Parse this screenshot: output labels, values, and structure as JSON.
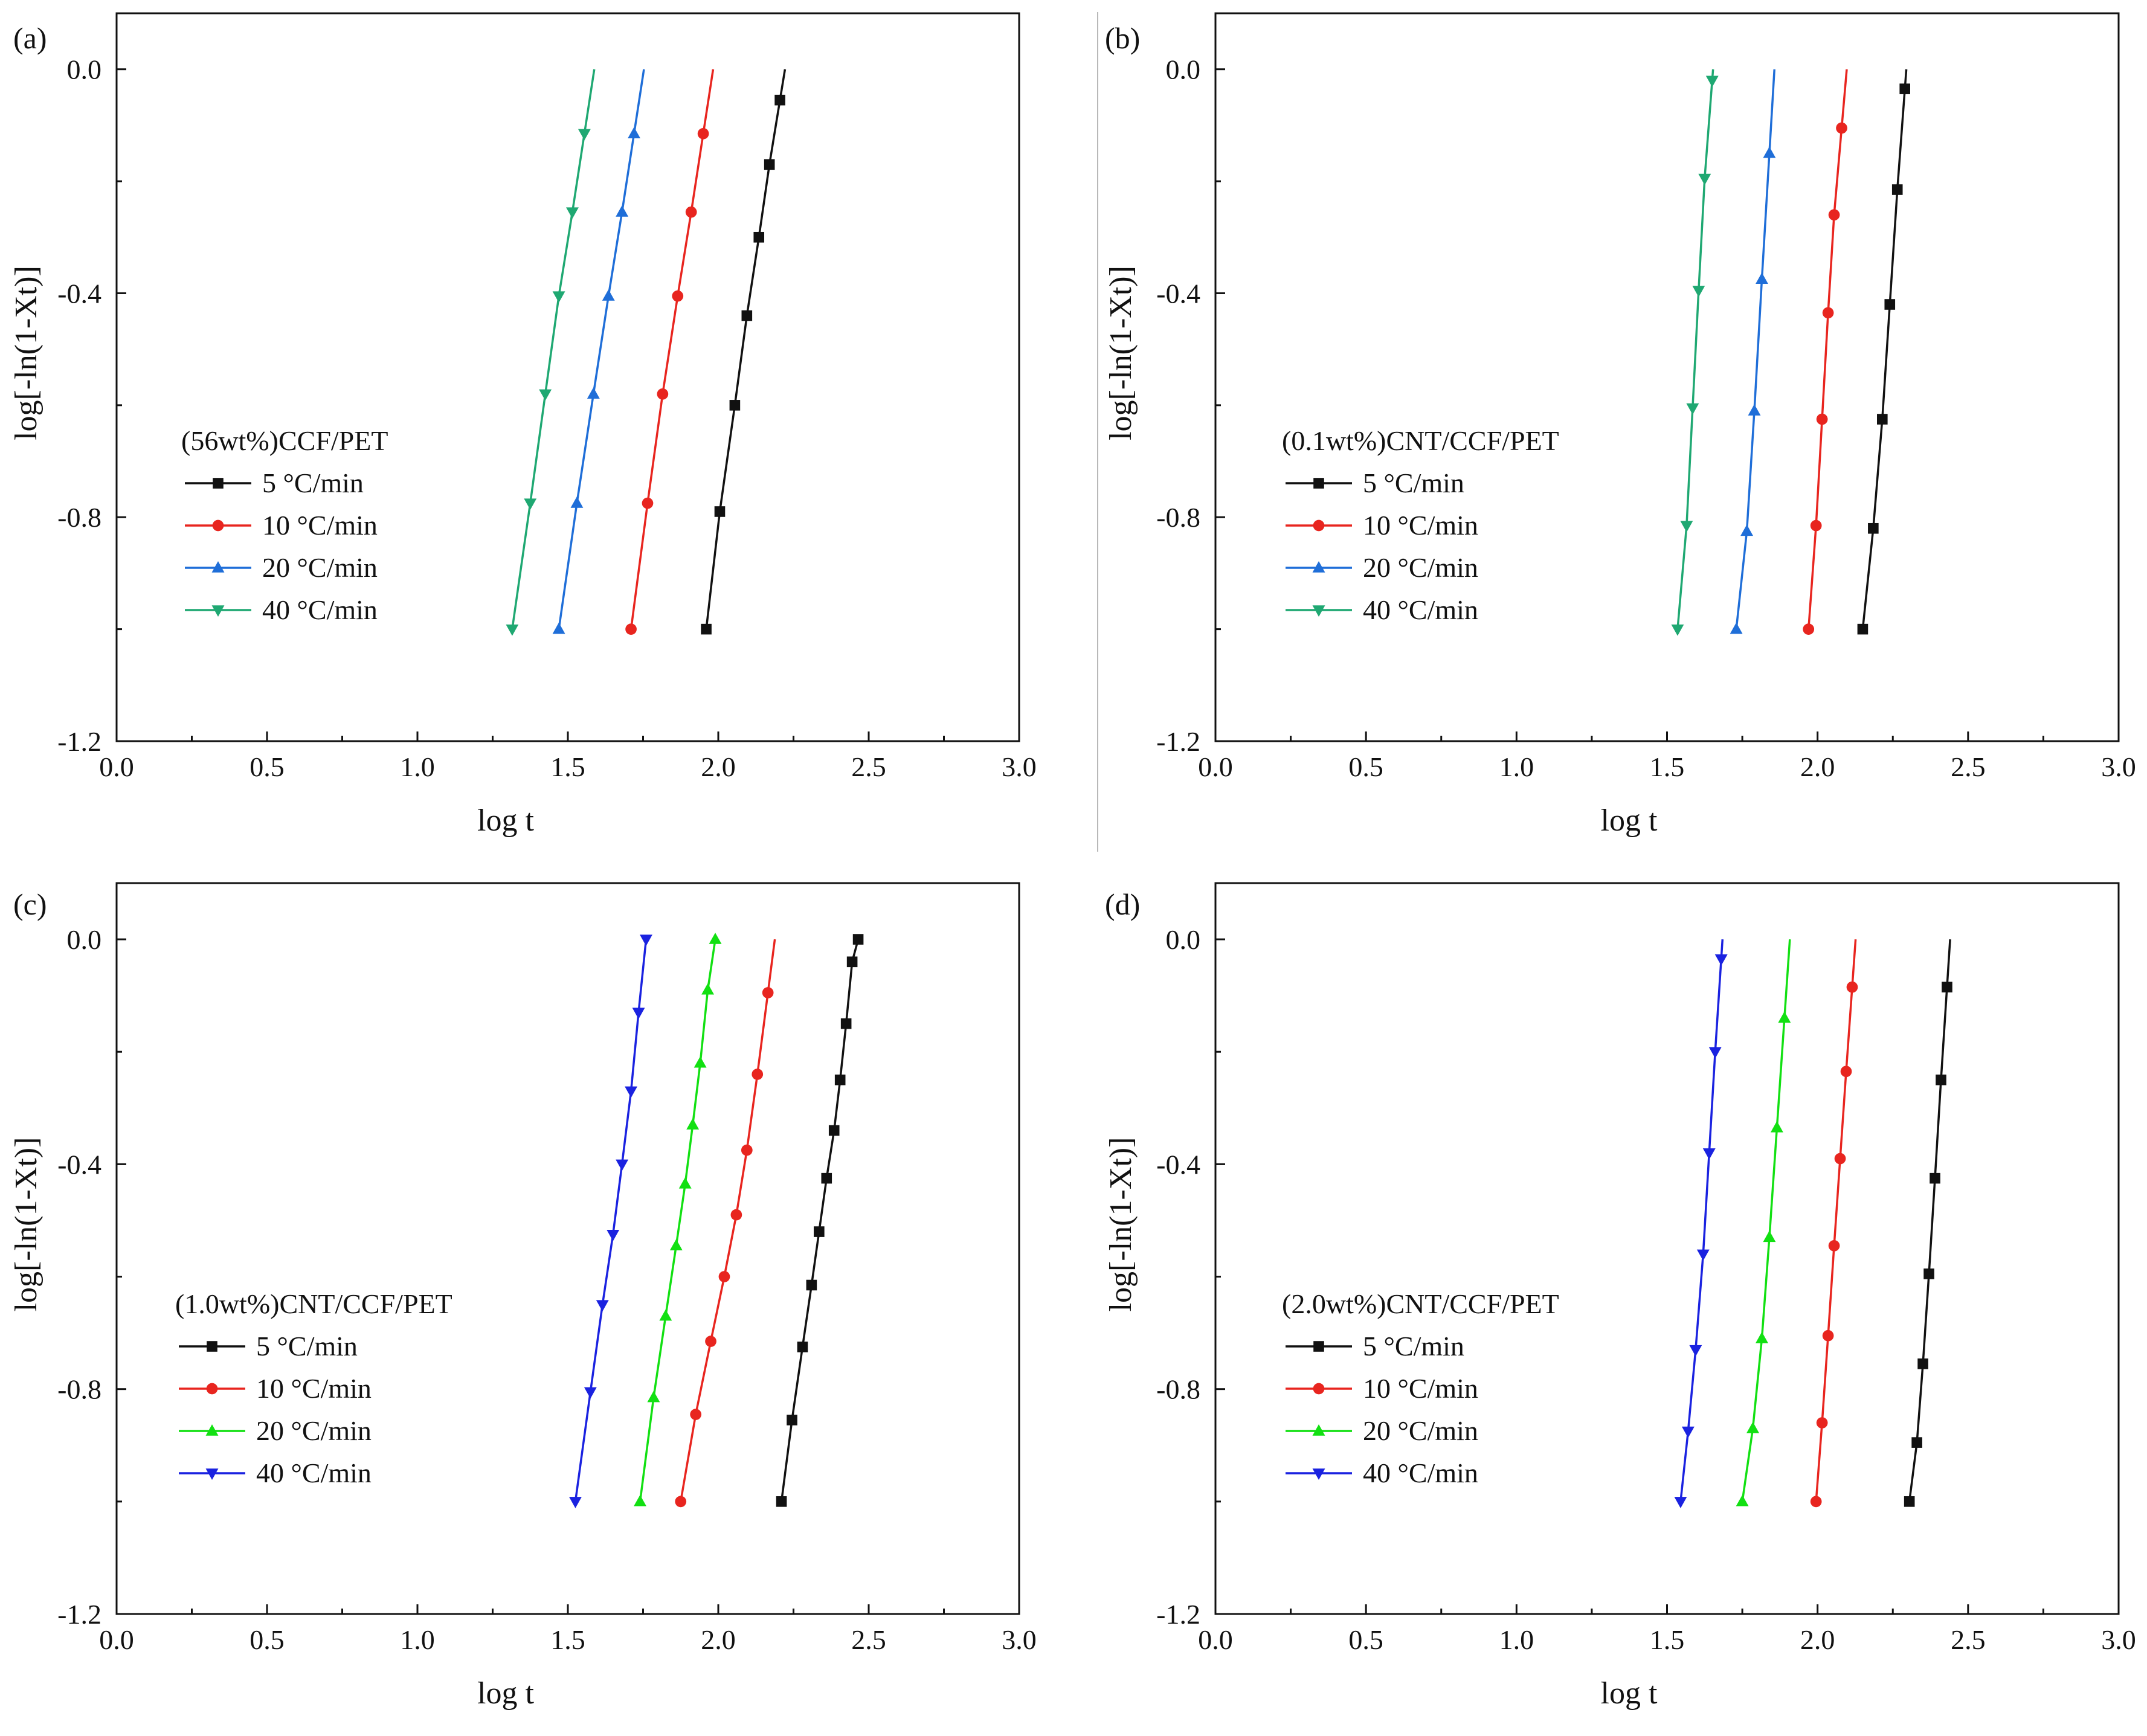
{
  "figure": {
    "panels": [
      {
        "label": "(a)",
        "legend_title": "(56wt%)CCF/PET",
        "xlabel": "log t",
        "ylabel": "log[-ln(1-Xt)]",
        "series": [
          {
            "name": "5 °C/min",
            "color": "#111111",
            "marker": "square",
            "x": [
              1.96,
              2.005,
              2.055,
              2.095,
              2.135,
              2.17,
              2.205
            ],
            "y": [
              -1.0,
              -0.79,
              -0.6,
              -0.44,
              -0.3,
              -0.17,
              -0.055
            ]
          },
          {
            "name": "10 °C/min",
            "color": "#e8251f",
            "marker": "circle",
            "x": [
              1.71,
              1.765,
              1.815,
              1.865,
              1.91,
              1.95
            ],
            "y": [
              -1.0,
              -0.775,
              -0.58,
              -0.405,
              -0.255,
              -0.115
            ]
          },
          {
            "name": "20 °C/min",
            "color": "#1f6ed8",
            "marker": "triangle-up",
            "x": [
              1.47,
              1.53,
              1.585,
              1.635,
              1.68,
              1.72
            ],
            "y": [
              -1.0,
              -0.775,
              -0.58,
              -0.405,
              -0.255,
              -0.115
            ]
          },
          {
            "name": "40 °C/min",
            "color": "#1fa872",
            "marker": "triangle-down",
            "x": [
              1.315,
              1.375,
              1.425,
              1.47,
              1.515,
              1.555
            ],
            "y": [
              -1.0,
              -0.775,
              -0.58,
              -0.405,
              -0.255,
              -0.115
            ]
          }
        ]
      },
      {
        "label": "(b)",
        "legend_title": "(0.1wt%)CNT/CCF/PET",
        "xlabel": "log t",
        "ylabel": "log[-ln(1-Xt)]",
        "series": [
          {
            "name": "5 °C/min",
            "color": "#111111",
            "marker": "square",
            "x": [
              2.15,
              2.185,
              2.215,
              2.24,
              2.265,
              2.29
            ],
            "y": [
              -1.0,
              -0.82,
              -0.625,
              -0.42,
              -0.215,
              -0.035
            ]
          },
          {
            "name": "10 °C/min",
            "color": "#e8251f",
            "marker": "circle",
            "x": [
              1.97,
              1.995,
              2.015,
              2.035,
              2.055,
              2.08
            ],
            "y": [
              -1.0,
              -0.815,
              -0.625,
              -0.435,
              -0.26,
              -0.105
            ]
          },
          {
            "name": "20 °C/min",
            "color": "#1f6ed8",
            "marker": "triangle-up",
            "x": [
              1.73,
              1.765,
              1.79,
              1.815,
              1.84
            ],
            "y": [
              -1.0,
              -0.825,
              -0.61,
              -0.375,
              -0.15
            ]
          },
          {
            "name": "40 °C/min",
            "color": "#1fa872",
            "marker": "triangle-down",
            "x": [
              1.535,
              1.565,
              1.585,
              1.605,
              1.625,
              1.65
            ],
            "y": [
              -1.0,
              -0.815,
              -0.605,
              -0.395,
              -0.195,
              -0.02
            ]
          }
        ]
      },
      {
        "label": "(c)",
        "legend_title": "(1.0wt%)CNT/CCF/PET",
        "xlabel": "log t",
        "ylabel": "log[-ln(1-Xt)]",
        "series": [
          {
            "name": "5 °C/min",
            "color": "#111111",
            "marker": "square",
            "x": [
              2.21,
              2.245,
              2.28,
              2.31,
              2.335,
              2.36,
              2.385,
              2.405,
              2.425,
              2.445,
              2.465
            ],
            "y": [
              -1.0,
              -0.855,
              -0.725,
              -0.615,
              -0.52,
              -0.425,
              -0.34,
              -0.25,
              -0.15,
              -0.04,
              0.0
            ]
          },
          {
            "name": "10 °C/min",
            "color": "#e8251f",
            "marker": "circle",
            "x": [
              1.875,
              1.925,
              1.975,
              2.02,
              2.06,
              2.095,
              2.13,
              2.165
            ],
            "y": [
              -1.0,
              -0.845,
              -0.715,
              -0.6,
              -0.49,
              -0.375,
              -0.24,
              -0.095
            ]
          },
          {
            "name": "20 °C/min",
            "color": "#12e012",
            "marker": "triangle-up",
            "x": [
              1.74,
              1.785,
              1.825,
              1.86,
              1.89,
              1.915,
              1.94,
              1.965,
              1.99
            ],
            "y": [
              -1.0,
              -0.815,
              -0.67,
              -0.545,
              -0.435,
              -0.33,
              -0.22,
              -0.09,
              0.0
            ]
          },
          {
            "name": "40 °C/min",
            "color": "#1a22e0",
            "marker": "triangle-down",
            "x": [
              1.525,
              1.575,
              1.615,
              1.65,
              1.68,
              1.71,
              1.735,
              1.76
            ],
            "y": [
              -1.0,
              -0.805,
              -0.65,
              -0.525,
              -0.4,
              -0.27,
              -0.13,
              0.0
            ]
          }
        ]
      },
      {
        "label": "(d)",
        "legend_title": "(2.0wt%)CNT/CCF/PET",
        "xlabel": "log t",
        "ylabel": "log[-ln(1-Xt)]",
        "series": [
          {
            "name": "5 °C/min",
            "color": "#111111",
            "marker": "square",
            "x": [
              2.305,
              2.33,
              2.35,
              2.37,
              2.39,
              2.41,
              2.43
            ],
            "y": [
              -1.0,
              -0.895,
              -0.755,
              -0.595,
              -0.425,
              -0.25,
              -0.085
            ]
          },
          {
            "name": "10 °C/min",
            "color": "#e8251f",
            "marker": "circle",
            "x": [
              1.995,
              2.015,
              2.035,
              2.055,
              2.075,
              2.095,
              2.115
            ],
            "y": [
              -1.0,
              -0.86,
              -0.705,
              -0.545,
              -0.39,
              -0.235,
              -0.085
            ]
          },
          {
            "name": "20 °C/min",
            "color": "#12e012",
            "marker": "triangle-up",
            "x": [
              1.75,
              1.785,
              1.815,
              1.84,
              1.865,
              1.89
            ],
            "y": [
              -1.0,
              -0.87,
              -0.71,
              -0.53,
              -0.335,
              -0.14
            ]
          },
          {
            "name": "40 °C/min",
            "color": "#1a22e0",
            "marker": "triangle-down",
            "x": [
              1.545,
              1.57,
              1.595,
              1.62,
              1.64,
              1.66,
              1.68
            ],
            "y": [
              -1.0,
              -0.875,
              -0.73,
              -0.56,
              -0.38,
              -0.2,
              -0.035
            ]
          }
        ]
      }
    ]
  },
  "chart_data": [
    {
      "type": "line",
      "title": "(a) (56wt%)CCF/PET",
      "xlabel": "log t",
      "ylabel": "log[-ln(1-Xt)]",
      "xlim": [
        0.0,
        3.0
      ],
      "ylim": [
        -1.2,
        0.1
      ],
      "xticks": [
        "0.0",
        "0.5",
        "1.0",
        "1.5",
        "2.0",
        "2.5",
        "3.0"
      ],
      "yticks": [
        "-1.2",
        "-0.8",
        "-0.4",
        "0.0"
      ],
      "legend": "left-middle",
      "series": [
        {
          "name": "5 °C/min",
          "x": [
            1.96,
            2.005,
            2.055,
            2.095,
            2.135,
            2.17,
            2.205
          ],
          "y": [
            -1.0,
            -0.79,
            -0.6,
            -0.44,
            -0.3,
            -0.17,
            -0.055
          ]
        },
        {
          "name": "10 °C/min",
          "x": [
            1.71,
            1.765,
            1.815,
            1.865,
            1.91,
            1.95
          ],
          "y": [
            -1.0,
            -0.775,
            -0.58,
            -0.405,
            -0.255,
            -0.115
          ]
        },
        {
          "name": "20 °C/min",
          "x": [
            1.47,
            1.53,
            1.585,
            1.635,
            1.68,
            1.72
          ],
          "y": [
            -1.0,
            -0.775,
            -0.58,
            -0.405,
            -0.255,
            -0.115
          ]
        },
        {
          "name": "40 °C/min",
          "x": [
            1.315,
            1.375,
            1.425,
            1.47,
            1.515,
            1.555
          ],
          "y": [
            -1.0,
            -0.775,
            -0.58,
            -0.405,
            -0.255,
            -0.115
          ]
        }
      ]
    },
    {
      "type": "line",
      "title": "(b) (0.1wt%)CNT/CCF/PET",
      "xlabel": "log t",
      "ylabel": "log[-ln(1-Xt)]",
      "xlim": [
        0.0,
        3.0
      ],
      "ylim": [
        -1.2,
        0.1
      ],
      "xticks": [
        "0.0",
        "0.5",
        "1.0",
        "1.5",
        "2.0",
        "2.5",
        "3.0"
      ],
      "yticks": [
        "-1.2",
        "-0.8",
        "-0.4",
        "0.0"
      ],
      "legend": "left-middle",
      "series": [
        {
          "name": "5 °C/min",
          "x": [
            2.15,
            2.185,
            2.215,
            2.24,
            2.265,
            2.29
          ],
          "y": [
            -1.0,
            -0.82,
            -0.625,
            -0.42,
            -0.215,
            -0.035
          ]
        },
        {
          "name": "10 °C/min",
          "x": [
            1.97,
            1.995,
            2.015,
            2.035,
            2.055,
            2.08
          ],
          "y": [
            -1.0,
            -0.815,
            -0.625,
            -0.435,
            -0.26,
            -0.105
          ]
        },
        {
          "name": "20 °C/min",
          "x": [
            1.73,
            1.765,
            1.79,
            1.815,
            1.84
          ],
          "y": [
            -1.0,
            -0.825,
            -0.61,
            -0.375,
            -0.15
          ]
        },
        {
          "name": "40 °C/min",
          "x": [
            1.535,
            1.565,
            1.585,
            1.605,
            1.625,
            1.65
          ],
          "y": [
            -1.0,
            -0.815,
            -0.605,
            -0.395,
            -0.195,
            -0.02
          ]
        }
      ]
    },
    {
      "type": "line",
      "title": "(c) (1.0wt%)CNT/CCF/PET",
      "xlabel": "log t",
      "ylabel": "log[-ln(1-Xt)]",
      "xlim": [
        0.0,
        3.0
      ],
      "ylim": [
        -1.2,
        0.1
      ],
      "xticks": [
        "0.0",
        "0.5",
        "1.0",
        "1.5",
        "2.0",
        "2.5",
        "3.0"
      ],
      "yticks": [
        "-1.2",
        "-0.8",
        "-0.4",
        "0.0"
      ],
      "legend": "left-middle",
      "series": [
        {
          "name": "5 °C/min",
          "x": [
            2.21,
            2.245,
            2.28,
            2.31,
            2.335,
            2.36,
            2.385,
            2.405,
            2.425,
            2.445,
            2.465
          ],
          "y": [
            -1.0,
            -0.855,
            -0.725,
            -0.615,
            -0.52,
            -0.425,
            -0.34,
            -0.25,
            -0.15,
            -0.04,
            0.0
          ]
        },
        {
          "name": "10 °C/min",
          "x": [
            1.875,
            1.925,
            1.975,
            2.02,
            2.06,
            2.095,
            2.13,
            2.165
          ],
          "y": [
            -1.0,
            -0.845,
            -0.715,
            -0.6,
            -0.49,
            -0.375,
            -0.24,
            -0.095
          ]
        },
        {
          "name": "20 °C/min",
          "x": [
            1.74,
            1.785,
            1.825,
            1.86,
            1.89,
            1.915,
            1.94,
            1.965,
            1.99
          ],
          "y": [
            -1.0,
            -0.815,
            -0.67,
            -0.545,
            -0.435,
            -0.33,
            -0.22,
            -0.09,
            0.0
          ]
        },
        {
          "name": "40 °C/min",
          "x": [
            1.525,
            1.575,
            1.615,
            1.65,
            1.68,
            1.71,
            1.735,
            1.76
          ],
          "y": [
            -1.0,
            -0.805,
            -0.65,
            -0.525,
            -0.4,
            -0.27,
            -0.13,
            0.0
          ]
        }
      ]
    },
    {
      "type": "line",
      "title": "(d) (2.0wt%)CNT/CCF/PET",
      "xlabel": "log t",
      "ylabel": "log[-ln(1-Xt)]",
      "xlim": [
        0.0,
        3.0
      ],
      "ylim": [
        -1.2,
        0.1
      ],
      "xticks": [
        "0.0",
        "0.5",
        "1.0",
        "1.5",
        "2.0",
        "2.5",
        "3.0"
      ],
      "yticks": [
        "-1.2",
        "-0.8",
        "-0.4",
        "0.0"
      ],
      "legend": "left-middle",
      "series": [
        {
          "name": "5 °C/min",
          "x": [
            2.305,
            2.33,
            2.35,
            2.37,
            2.39,
            2.41,
            2.43
          ],
          "y": [
            -1.0,
            -0.895,
            -0.755,
            -0.595,
            -0.425,
            -0.25,
            -0.085
          ]
        },
        {
          "name": "10 °C/min",
          "x": [
            1.995,
            2.015,
            2.035,
            2.055,
            2.075,
            2.095,
            2.115
          ],
          "y": [
            -1.0,
            -0.86,
            -0.705,
            -0.545,
            -0.39,
            -0.235,
            -0.085
          ]
        },
        {
          "name": "20 °C/min",
          "x": [
            1.75,
            1.785,
            1.815,
            1.84,
            1.865,
            1.89
          ],
          "y": [
            -1.0,
            -0.87,
            -0.71,
            -0.53,
            -0.335,
            -0.14
          ]
        },
        {
          "name": "40 °C/min",
          "x": [
            1.545,
            1.57,
            1.595,
            1.62,
            1.64,
            1.66,
            1.68
          ],
          "y": [
            -1.0,
            -0.875,
            -0.73,
            -0.56,
            -0.38,
            -0.2,
            -0.035
          ]
        }
      ]
    }
  ]
}
